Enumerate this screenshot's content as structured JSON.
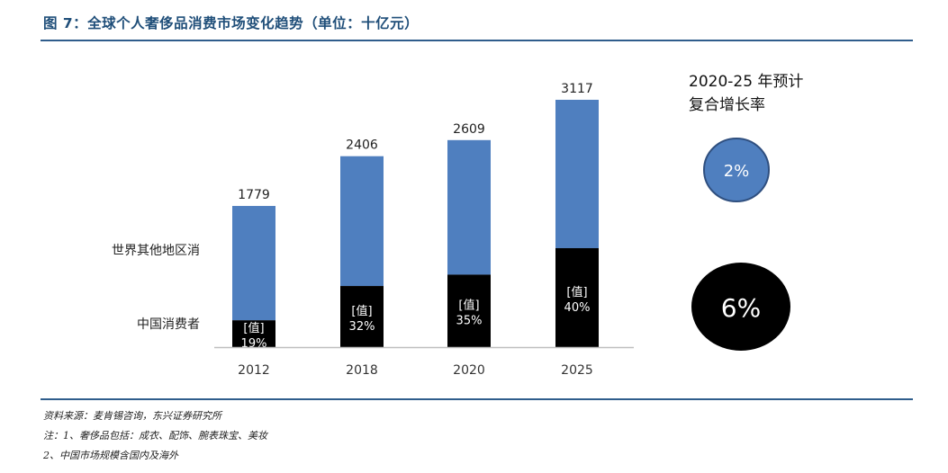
{
  "figure": {
    "title": "图 7：全球个人奢侈品消费市场变化趋势（单位：十亿元）"
  },
  "cagr": {
    "title_line1": "2020-25 年预计",
    "title_line2": "复合增长率",
    "rest_value": "2%",
    "china_value": "6%"
  },
  "colors": {
    "rest": "#4f7fbf",
    "china": "#000000",
    "rule": "#2f5d8c",
    "title": "#1f4e79"
  },
  "chart_data": {
    "type": "bar",
    "stacked": true,
    "categories": [
      "2012",
      "2018",
      "2020",
      "2025"
    ],
    "totals": [
      1779,
      2406,
      2609,
      3117
    ],
    "series": [
      {
        "name": "中国消费者",
        "share_labels": [
          "19%",
          "32%",
          "35%",
          "40%"
        ],
        "placeholder": "[值]",
        "values": [
          338,
          770,
          913,
          1247
        ]
      },
      {
        "name": "世界其他地区消",
        "values": [
          1441,
          1636,
          1696,
          1870
        ]
      }
    ],
    "ylim": [
      0,
      3400
    ]
  },
  "footer": {
    "source": "资料来源：麦肯锡咨询，东兴证券研究所",
    "note1": "注：1、奢侈品包括：成衣、配饰、腕表珠宝、美妆",
    "note2": "2、中国市场规模含国内及海外"
  }
}
